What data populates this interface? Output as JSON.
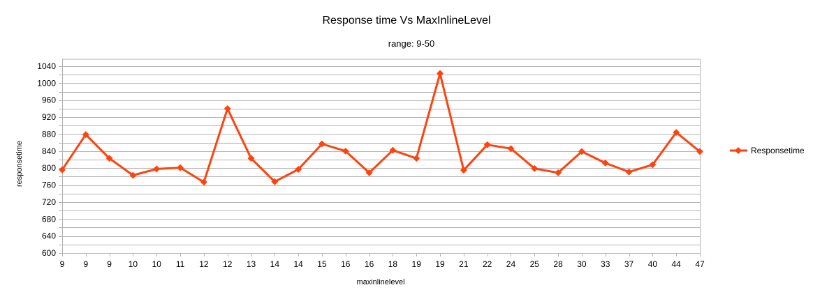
{
  "chart_data": {
    "type": "line",
    "title": "Response time Vs MaxInlineLevel",
    "subtitle": "range: 9-50",
    "xlabel": "maxinlinelevel",
    "ylabel": "responsetime",
    "ylim": [
      600,
      1040
    ],
    "ytick_step": 40,
    "yticks": [
      "600",
      "640",
      "680",
      "720",
      "760",
      "800",
      "840",
      "880",
      "920",
      "960",
      "1000",
      "1040"
    ],
    "categories": [
      "9",
      "9",
      "9",
      "10",
      "10",
      "11",
      "12",
      "12",
      "13",
      "14",
      "14",
      "15",
      "16",
      "16",
      "18",
      "19",
      "19",
      "21",
      "22",
      "24",
      "25",
      "28",
      "30",
      "33",
      "37",
      "40",
      "44",
      "47"
    ],
    "grid": true,
    "legend_position": "right",
    "series": [
      {
        "name": "Responsetime",
        "color": "#ff420e",
        "marker": "diamond",
        "values": [
          796,
          879,
          823,
          783,
          798,
          801,
          767,
          940,
          823,
          768,
          797,
          857,
          840,
          789,
          842,
          823,
          1023,
          795,
          855,
          846,
          799,
          789,
          839,
          812,
          791,
          808,
          884,
          839
        ]
      }
    ]
  }
}
